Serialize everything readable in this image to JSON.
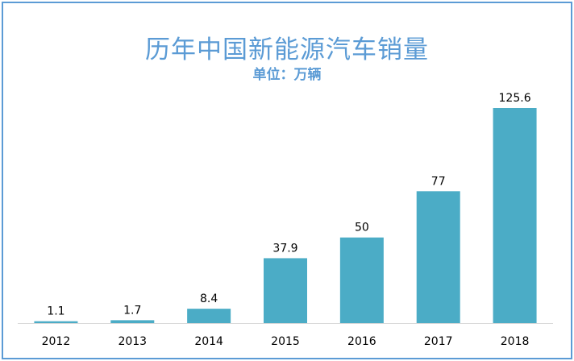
{
  "chart_data": {
    "type": "bar",
    "title": "历年中国新能源汽车销量",
    "subtitle": "单位：万辆",
    "categories": [
      "2012",
      "2013",
      "2014",
      "2015",
      "2016",
      "2017",
      "2018"
    ],
    "values": [
      1.1,
      1.7,
      8.4,
      37.9,
      50,
      77,
      125.6
    ],
    "data_labels": [
      "1.1",
      "1.7",
      "8.4",
      "37.9",
      "50",
      "77",
      "125.6"
    ],
    "xlabel": "",
    "ylabel": "",
    "ylim": [
      0,
      125.6
    ],
    "grid": false,
    "legend": "none",
    "colors": {
      "bar": "#4bacc6",
      "title": "#5b9bd5",
      "border": "#5b9bd5",
      "axis": "#d9d9d9"
    }
  }
}
